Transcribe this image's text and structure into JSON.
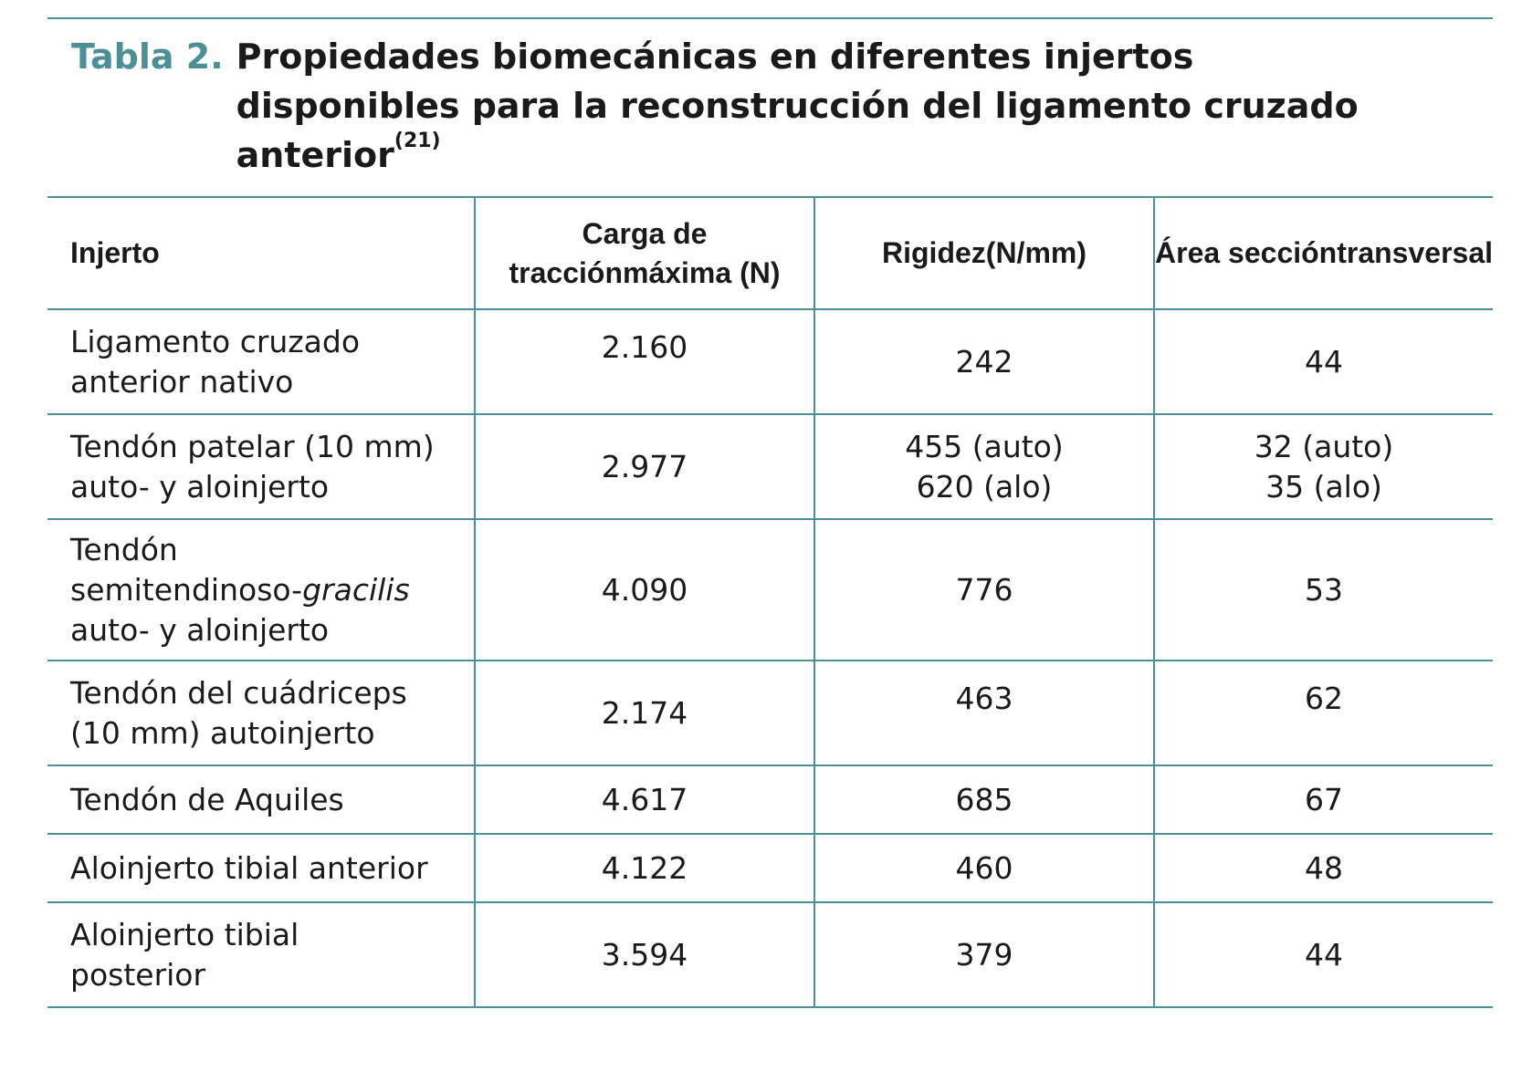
{
  "caption": {
    "label": "Tabla 2.",
    "title": "Propiedades biomecánicas en diferentes injertos disponibles para la reconstrucción del ligamento cruzado anterior",
    "reference": "(21)"
  },
  "table": {
    "headers": {
      "graft": "Injerto",
      "load": [
        "Carga de tracción",
        "máxima (N)"
      ],
      "stiffness": [
        "Rigidez",
        "(N/mm)"
      ],
      "area": [
        "Área sección",
        "transversal"
      ]
    },
    "rows": [
      {
        "graft": [
          "Ligamento cruzado",
          "anterior nativo"
        ],
        "load": [
          "2.160"
        ],
        "stiffness": [
          "242"
        ],
        "area": [
          "44"
        ]
      },
      {
        "graft": [
          "Tendón patelar (10 mm)",
          "auto- y aloinjerto"
        ],
        "load": [
          "2.977"
        ],
        "stiffness": [
          "455 (auto)",
          "620 (alo)"
        ],
        "area": [
          "32 (auto)",
          "35 (alo)"
        ]
      },
      {
        "graft": [
          "Tendón",
          "semitendinoso-",
          "gracilis",
          "auto- y aloinjerto"
        ],
        "load": [
          "4.090"
        ],
        "stiffness": [
          "776"
        ],
        "area": [
          "53"
        ]
      },
      {
        "graft": [
          "Tendón del cuádriceps",
          "(10 mm) autoinjerto"
        ],
        "load": [
          "2.174"
        ],
        "stiffness": [
          "463"
        ],
        "area": [
          "62"
        ]
      },
      {
        "graft": [
          "Tendón de Aquiles"
        ],
        "load": [
          "4.617"
        ],
        "stiffness": [
          "685"
        ],
        "area": [
          "67"
        ]
      },
      {
        "graft": [
          "Aloinjerto tibial anterior"
        ],
        "load": [
          "4.122"
        ],
        "stiffness": [
          "460"
        ],
        "area": [
          "48"
        ]
      },
      {
        "graft": [
          "Aloinjerto tibial",
          "posterior"
        ],
        "load": [
          "3.594"
        ],
        "stiffness": [
          "379"
        ],
        "area": [
          "44"
        ]
      }
    ]
  },
  "colors": {
    "accent": "#4d8f97",
    "text": "#1a1a1a"
  }
}
